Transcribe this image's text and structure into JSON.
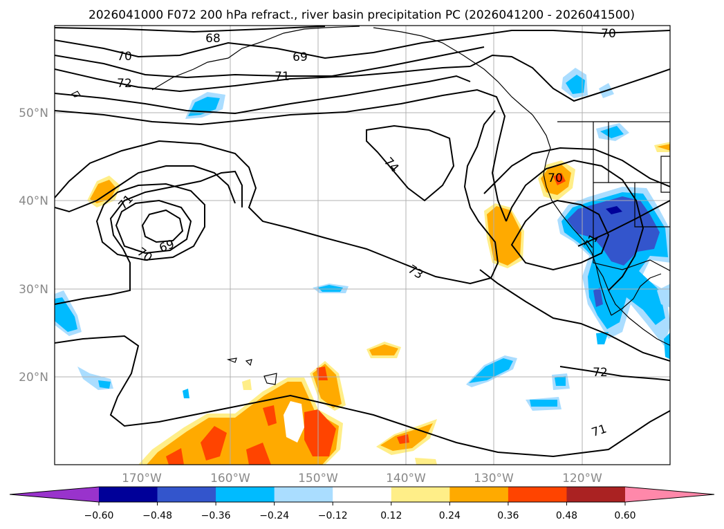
{
  "title": "2026041000 F072 200 hPa refract., river basin precipitation PC (2026041200 - 2026041500)",
  "map": {
    "lat_labels": [
      "50°N",
      "40°N",
      "30°N",
      "20°N"
    ],
    "lon_labels": [
      "170°W",
      "160°W",
      "150°W",
      "140°W",
      "130°W",
      "120°W"
    ],
    "contour_labels": [
      "68",
      "70",
      "69",
      "71",
      "72",
      "70",
      "74",
      "71",
      "69",
      "70",
      "73",
      "70",
      "71",
      "72",
      "71"
    ]
  },
  "colorbar": {
    "colors": [
      "#9933cc",
      "#000099",
      "#3355cc",
      "#00bbff",
      "#aaddff",
      "#ffffff",
      "#ffee88",
      "#ffaa00",
      "#ff4400",
      "#aa2222",
      "#ff88aa"
    ],
    "tick_labels": [
      "−0.60",
      "−0.48",
      "−0.36",
      "−0.24",
      "−0.12",
      "0.12",
      "0.24",
      "0.36",
      "0.48",
      "0.60"
    ]
  }
}
